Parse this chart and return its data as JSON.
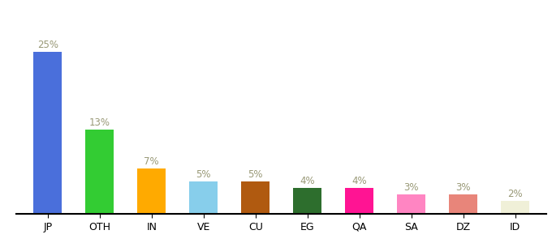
{
  "categories": [
    "JP",
    "OTH",
    "IN",
    "VE",
    "CU",
    "EG",
    "QA",
    "SA",
    "DZ",
    "ID"
  ],
  "values": [
    25,
    13,
    7,
    5,
    5,
    4,
    4,
    3,
    3,
    2
  ],
  "bar_colors": [
    "#4a6fdb",
    "#33cc33",
    "#ffaa00",
    "#87ceeb",
    "#b05a10",
    "#2d6e2d",
    "#ff1493",
    "#ff85c2",
    "#e8857a",
    "#f0f0d8"
  ],
  "label_fontsize": 8.5,
  "tick_fontsize": 9,
  "label_color": "#999977",
  "background_color": "#ffffff",
  "ylim": [
    0,
    30
  ],
  "bar_width": 0.55
}
